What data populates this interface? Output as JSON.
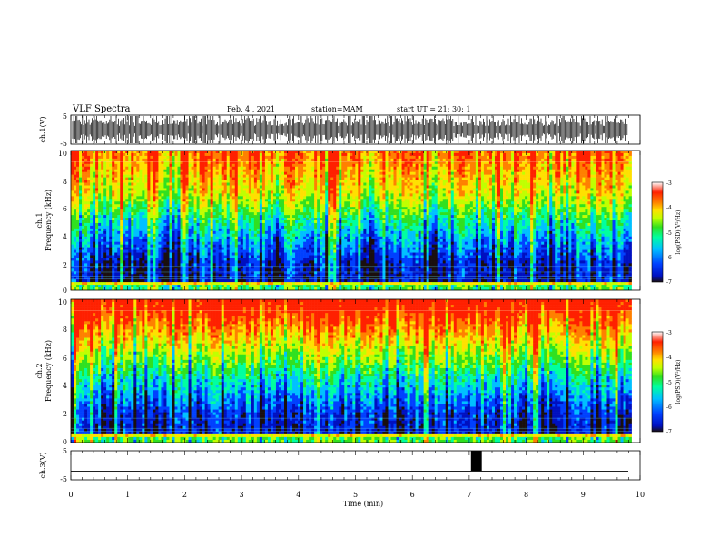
{
  "header": {
    "title": "VLF Spectra",
    "date": "Feb. 4 , 2021",
    "station": "station=MAM",
    "start": "start  UT =   21: 30: 1"
  },
  "colors": {
    "spectrum": [
      "#1a0f0f",
      "#0010c0",
      "#0040ff",
      "#00c0ff",
      "#00ffa0",
      "#30e020",
      "#c0ff00",
      "#ffe000",
      "#ff8000",
      "#ff2000",
      "#ffffff"
    ],
    "trace": "#000000"
  },
  "chart_data": [
    {
      "type": "line",
      "name": "ch1-waveform",
      "ylabel": "ch.1(V)",
      "ylim": [
        -5,
        5
      ],
      "yticks": [
        "5",
        "-5"
      ],
      "xlim": [
        0,
        10
      ]
    },
    {
      "type": "heatmap",
      "name": "ch1-spectrogram",
      "ylabel_lines": [
        "ch.1",
        "Frequency  (kHz)"
      ],
      "ylim": [
        0,
        10
      ],
      "yticks": [
        "0",
        "2",
        "4",
        "6",
        "8",
        "10"
      ],
      "xlim": [
        0,
        9.85
      ],
      "colorbar": {
        "label": "log(PSD)(V²/Hz)",
        "range": [
          -7,
          -3
        ],
        "ticks": [
          "-3",
          "-4",
          "-5",
          "-6",
          "-7"
        ]
      }
    },
    {
      "type": "heatmap",
      "name": "ch2-spectrogram",
      "ylabel_lines": [
        "ch.2",
        "Frequency  (kHz)"
      ],
      "ylim": [
        0,
        10
      ],
      "yticks": [
        "0",
        "2",
        "4",
        "6",
        "8",
        "10"
      ],
      "xlim": [
        0,
        9.85
      ],
      "colorbar": {
        "label": "log(PSD)(V²/Hz)",
        "range": [
          -7,
          -3
        ],
        "ticks": [
          "-3",
          "-4",
          "-5",
          "-6",
          "-7"
        ]
      }
    },
    {
      "type": "line",
      "name": "ch3-signal",
      "ylabel": "ch.3(V)",
      "ylim": [
        -5,
        5
      ],
      "yticks": [
        "5",
        "-5"
      ],
      "baseline": -2,
      "pulse": {
        "x": [
          7.03,
          7.22
        ],
        "y": [
          -2,
          5
        ]
      }
    }
  ],
  "xaxis": {
    "label": "Time  (min)",
    "range": [
      0,
      10
    ],
    "ticks": [
      "0",
      "1",
      "2",
      "3",
      "4",
      "5",
      "6",
      "7",
      "8",
      "9",
      "10"
    ]
  }
}
